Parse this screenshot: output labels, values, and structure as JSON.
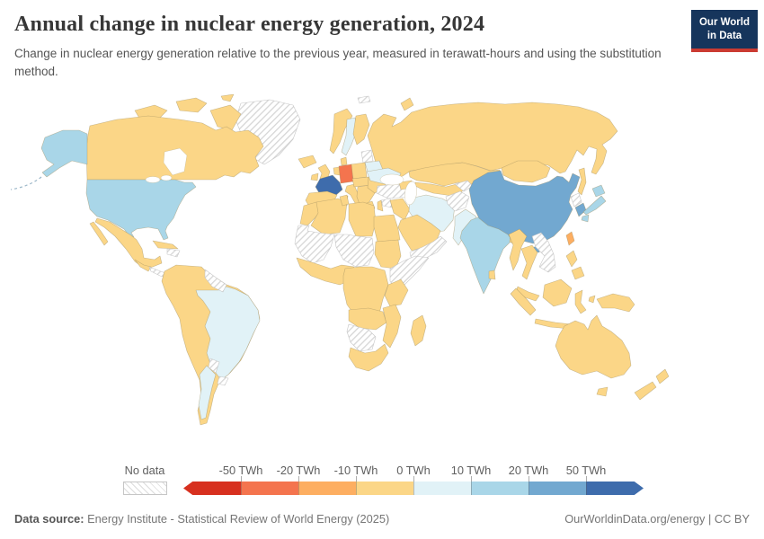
{
  "header": {
    "title": "Annual change in nuclear energy generation, 2024",
    "subtitle": "Change in nuclear energy generation relative to the previous year, measured in terawatt-hours and using the substitution method."
  },
  "logo": {
    "line1": "Our World",
    "line2": "in Data",
    "bg": "#16355c",
    "bar": "#cb3b32"
  },
  "legend": {
    "no_data_label": "No data",
    "ticks": [
      "-50 TWh",
      "-20 TWh",
      "-10 TWh",
      "0 TWh",
      "10 TWh",
      "20 TWh",
      "50 TWh"
    ],
    "colors": [
      "#d7301f",
      "#f4744e",
      "#fdae61",
      "#fbd687",
      "#e1f2f7",
      "#a9d6e8",
      "#72a8d0",
      "#3e6cac"
    ]
  },
  "footer": {
    "source_label": "Data source:",
    "source_text": " Energy Institute - Statistical Review of World Energy (2025)",
    "right_text": "OurWorldinData.org/energy | CC BY"
  },
  "chart_data": {
    "type": "heatmap",
    "note": "world choropleth map; values are color-bin readings per country",
    "title": "Annual change in nuclear energy generation, 2024",
    "unit": "TWh",
    "bins": [
      {
        "label": "below -50",
        "color": "#d7301f"
      },
      {
        "label": "-50 to -20",
        "color": "#f4744e"
      },
      {
        "label": "-20 to -10",
        "color": "#fdae61"
      },
      {
        "label": "-10 to 0",
        "color": "#fbd687"
      },
      {
        "label": "0 to 10",
        "color": "#e1f2f7"
      },
      {
        "label": "10 to 20",
        "color": "#a9d6e8"
      },
      {
        "label": "20 to 50",
        "color": "#72a8d0"
      },
      {
        "label": "above 50",
        "color": "#3e6cac"
      }
    ],
    "values": {
      "France": "above 50",
      "China": "20 to 50",
      "South Korea": "20 to 50",
      "United States": "10 to 20",
      "Japan": "10 to 20",
      "India": "10 to 20",
      "Brazil": "0 to 10",
      "Argentina": "0 to 10",
      "Sweden": "0 to 10",
      "Ukraine": "0 to 10",
      "Belarus": "0 to 10",
      "Iran": "0 to 10",
      "Pakistan": "0 to 10",
      "Canada": "-10 to 0",
      "Mexico": "-10 to 0",
      "Russia": "-10 to 0",
      "United Kingdom": "-10 to 0",
      "Spain": "-10 to 0",
      "Finland": "-10 to 0",
      "Norway": "-10 to 0",
      "Italy": "-10 to 0",
      "Poland": "-10 to 0",
      "Romania": "-10 to 0",
      "Kazakhstan": "-10 to 0",
      "Mongolia": "-10 to 0",
      "Saudi Arabia": "-10 to 0",
      "Egypt": "-10 to 0",
      "Nigeria": "-10 to 0",
      "South Africa": "-10 to 0",
      "Madagascar": "-10 to 0",
      "Australia": "-10 to 0",
      "New Zealand": "-10 to 0",
      "Indonesia": "-10 to 0",
      "Thailand": "-10 to 0",
      "Philippines": "-10 to 0",
      "Colombia": "-10 to 0",
      "Peru": "-10 to 0",
      "Chile": "-10 to 0",
      "Taiwan": "-20 to -10",
      "Germany": "-50 to -20"
    },
    "no_data": [
      "Greenland",
      "Turkey",
      "Syria",
      "Yemen",
      "Oman",
      "Afghanistan",
      "Tajikistan",
      "Kyrgyzstan",
      "North Korea",
      "Vietnam",
      "Laos",
      "Cambodia",
      "Paraguay",
      "Uruguay",
      "Guyana",
      "Suriname",
      "Haiti",
      "Dominican Republic",
      "Nicaragua",
      "Panama",
      "Mauritania",
      "Mali",
      "Niger",
      "Chad",
      "Ethiopia",
      "Somalia",
      "Namibia",
      "Botswana",
      "Baltic states",
      "Svalbard"
    ]
  },
  "map": {
    "palette": {
      "r": "#d7301f",
      "or": "#f4744e",
      "o": "#fdae61",
      "y": "#fbd687",
      "pb": "#e1f2f7",
      "lb": "#a9d6e8",
      "mb": "#72a8d0",
      "db": "#3e6cac"
    },
    "regions": {
      "greenland": "nd",
      "svalbard": "nd",
      "novaya-zemlya": "y",
      "canada": "y",
      "arctic-1": "y",
      "arctic-2": "y",
      "arctic-3": "y",
      "baffin": "y",
      "victoria": "y",
      "alaska": "lb",
      "usa": "lb",
      "mexico": "y",
      "baja": "y",
      "cuba": "y",
      "hispaniola": "nd",
      "central-america": "y",
      "nicaragua-panama": "nd",
      "sa-west": "y",
      "brazil": "pb",
      "argentina": "pb",
      "paraguay": "nd",
      "uruguay": "nd",
      "guyanas": "nd",
      "iceland": "y",
      "uk": "y",
      "ireland": "y",
      "norway": "y",
      "sweden": "pb",
      "finland": "y",
      "denmark": "y",
      "baltics": "nd",
      "belarus": "pb",
      "poland": "y",
      "germany": "or",
      "benelux": "y",
      "france": "db",
      "spain": "y",
      "italy": "y",
      "sicily": "y",
      "sardinia": "y",
      "ceur": "y",
      "balkans": "y",
      "greece": "y",
      "romania-bulgaria": "y",
      "ukraine": "pb",
      "russia": "y",
      "turkey": "nd",
      "syria": "nd",
      "levant": "y",
      "iraq": "y",
      "iran": "pb",
      "caucasus": "y",
      "saudi": "y",
      "yemen-oman": "nd",
      "morocco": "y",
      "algeria": "y",
      "tunisia": "y",
      "libya": "y",
      "egypt": "y",
      "sahara-west": "nd",
      "niger-chad": "nd",
      "sudan": "y",
      "horn": "nd",
      "west-africa": "y",
      "central-africa": "y",
      "kenya-tanzania": "y",
      "angola-zambia": "y",
      "moz-zim": "y",
      "namibia-botswana": "nd",
      "south-africa": "y",
      "madagascar": "y",
      "kazakhstan": "y",
      "uzbek-turkmen": "y",
      "afghanistan": "nd",
      "tajik-kyrgyz": "nd",
      "pakistan": "pb",
      "india": "lb",
      "nepal": "y",
      "bangladesh": "y",
      "sri-lanka": "y",
      "china": "mb",
      "hainan": "mb",
      "mongolia": "y",
      "north-korea": "nd",
      "south-korea": "mb",
      "japan-hokkaido": "lb",
      "japan-honshu": "lb",
      "japan-kyushu": "lb",
      "sakhalin": "y",
      "taiwan": "o",
      "myanmar": "y",
      "thailand": "y",
      "indochina": "nd",
      "malaysia": "y",
      "sumatra": "y",
      "java": "y",
      "borneo": "y",
      "sulawesi": "y",
      "moluccas": "y",
      "philippines-n": "y",
      "philippines-s": "y",
      "new-guinea": "y",
      "australia": "y",
      "tasmania": "y",
      "nz-north": "y",
      "nz-south": "y"
    }
  }
}
